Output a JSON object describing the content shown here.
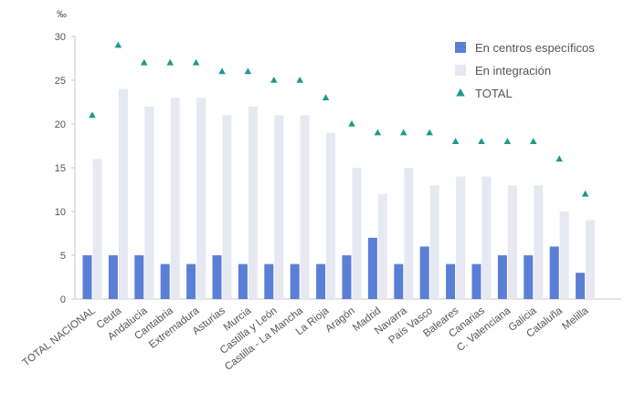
{
  "chart_data": {
    "type": "bar",
    "unit_label": "‰",
    "categories": [
      "TOTAL NACIONAL",
      "Ceuta",
      "Andalucía",
      "Cantabria",
      "Extremadura",
      "Asturias",
      "Murcia",
      "Castilla y León",
      "Castilla - La Mancha",
      "La Rioja",
      "Aragón",
      "Madrid",
      "Navarra",
      "País Vasco",
      "Baleares",
      "Canarias",
      "C. Valenciana",
      "Galicia",
      "Cataluña",
      "Melilla"
    ],
    "series": [
      {
        "name": "En centros específicos",
        "type": "bar",
        "color": "#5b7fd6",
        "values": [
          5,
          5,
          5,
          4,
          4,
          5,
          4,
          4,
          4,
          4,
          5,
          7,
          4,
          6,
          4,
          4,
          5,
          5,
          6,
          3
        ]
      },
      {
        "name": "En integración",
        "type": "bar",
        "color": "#e6e9f1",
        "values": [
          16,
          24,
          22,
          23,
          23,
          21,
          22,
          21,
          21,
          19,
          15,
          12,
          15,
          13,
          14,
          14,
          13,
          13,
          10,
          9
        ]
      },
      {
        "name": "TOTAL",
        "type": "marker",
        "color": "#1f9a8a",
        "values": [
          21,
          29,
          27,
          27,
          27,
          26,
          26,
          25,
          25,
          23,
          20,
          19,
          19,
          19,
          18,
          18,
          18,
          18,
          16,
          12
        ]
      }
    ],
    "yticks": [
      "0",
      "5",
      "10",
      "15",
      "20",
      "25",
      "30"
    ],
    "ylim": [
      0,
      30
    ],
    "grid": false,
    "legend_position": "top-right"
  }
}
